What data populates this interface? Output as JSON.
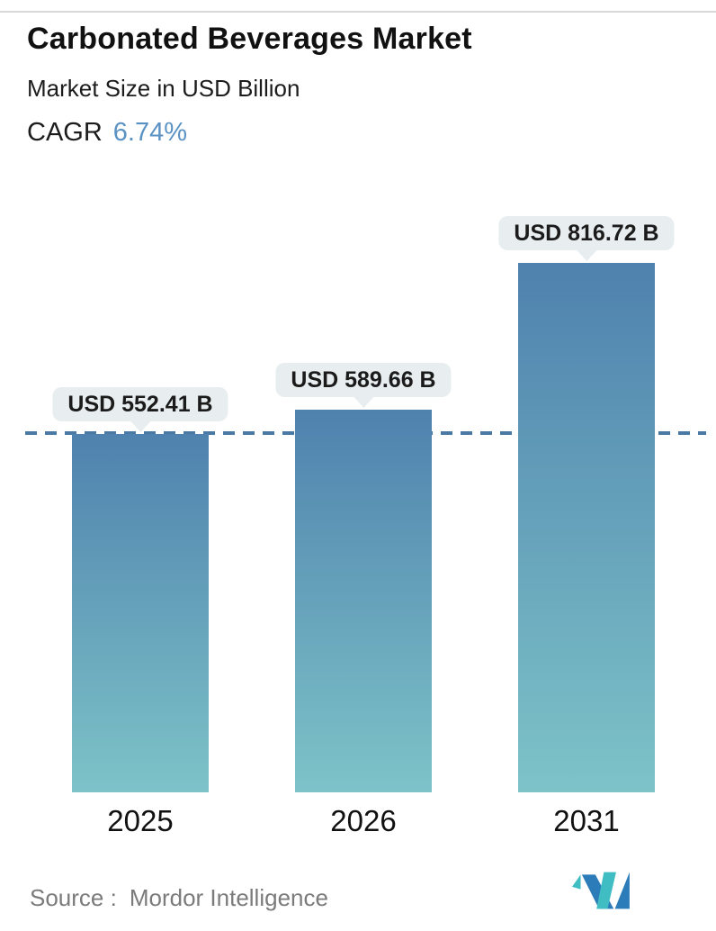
{
  "header": {
    "title": "Carbonated Beverages Market",
    "subtitle": "Market Size in USD Billion",
    "cagr_label": "CAGR",
    "cagr_value": "6.74%"
  },
  "chart_data": {
    "type": "bar",
    "categories": [
      "2025",
      "2026",
      "2031"
    ],
    "values": [
      552.41,
      589.66,
      816.72
    ],
    "data_labels": [
      "USD 552.41 B",
      "USD 589.66 B",
      "USD 816.72 B"
    ],
    "unit": "USD Billion",
    "title": "Carbonated Beverages Market",
    "xlabel": "",
    "ylabel": "Market Size in USD Billion",
    "ylim": [
      0,
      816.72
    ],
    "grid": false,
    "legend": false,
    "reference_line": {
      "value": 552.41,
      "style": "dashed",
      "color": "#4a7aa4"
    },
    "bar_gradient_top": "#4f82ae",
    "bar_gradient_bottom": "#7dc3c8",
    "label_bubble_bg": "#e8edef"
  },
  "footer": {
    "source_label": "Source :",
    "source_value": "Mordor Intelligence",
    "logo_name": "mordor-intelligence-logo"
  },
  "colors": {
    "accent_blue": "#5b92c4",
    "dashed_line": "#4a7aa4",
    "logo_teal": "#3fbdc3",
    "logo_blue": "#2d7cba"
  }
}
